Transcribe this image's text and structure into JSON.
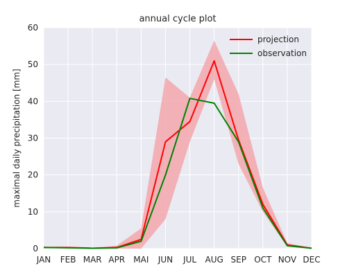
{
  "chart_data": {
    "type": "line",
    "title": "annual cycle plot",
    "xlabel": "",
    "ylabel": "maximal daily precipitation [mm]",
    "categories": [
      "JAN",
      "FEB",
      "MAR",
      "APR",
      "MAI",
      "JUN",
      "JUL",
      "AUG",
      "SEP",
      "OCT",
      "NOV",
      "DEC"
    ],
    "ylim": [
      0,
      60
    ],
    "yticks": [
      0,
      10,
      20,
      30,
      40,
      50,
      60
    ],
    "grid": true,
    "legend_position": "top-right",
    "band": {
      "lower": [
        0.2,
        0.2,
        0.0,
        0.0,
        0.0,
        8.0,
        29.0,
        46.0,
        23.0,
        10.0,
        0.5,
        0.1
      ],
      "upper": [
        0.5,
        0.4,
        0.2,
        0.8,
        5.5,
        46.5,
        41.0,
        56.5,
        42.0,
        16.5,
        1.5,
        0.2
      ],
      "color": "#f4a3a8"
    },
    "series": [
      {
        "name": "projection",
        "color": "#ff0000",
        "values": [
          0.3,
          0.3,
          0.1,
          0.3,
          2.5,
          29.0,
          34.5,
          51.0,
          29.5,
          12.0,
          1.0,
          0.1
        ]
      },
      {
        "name": "observation",
        "color": "#008000",
        "values": [
          0.3,
          0.2,
          0.1,
          0.2,
          2.0,
          20.0,
          40.8,
          39.5,
          29.0,
          11.0,
          0.8,
          0.1
        ]
      }
    ]
  }
}
